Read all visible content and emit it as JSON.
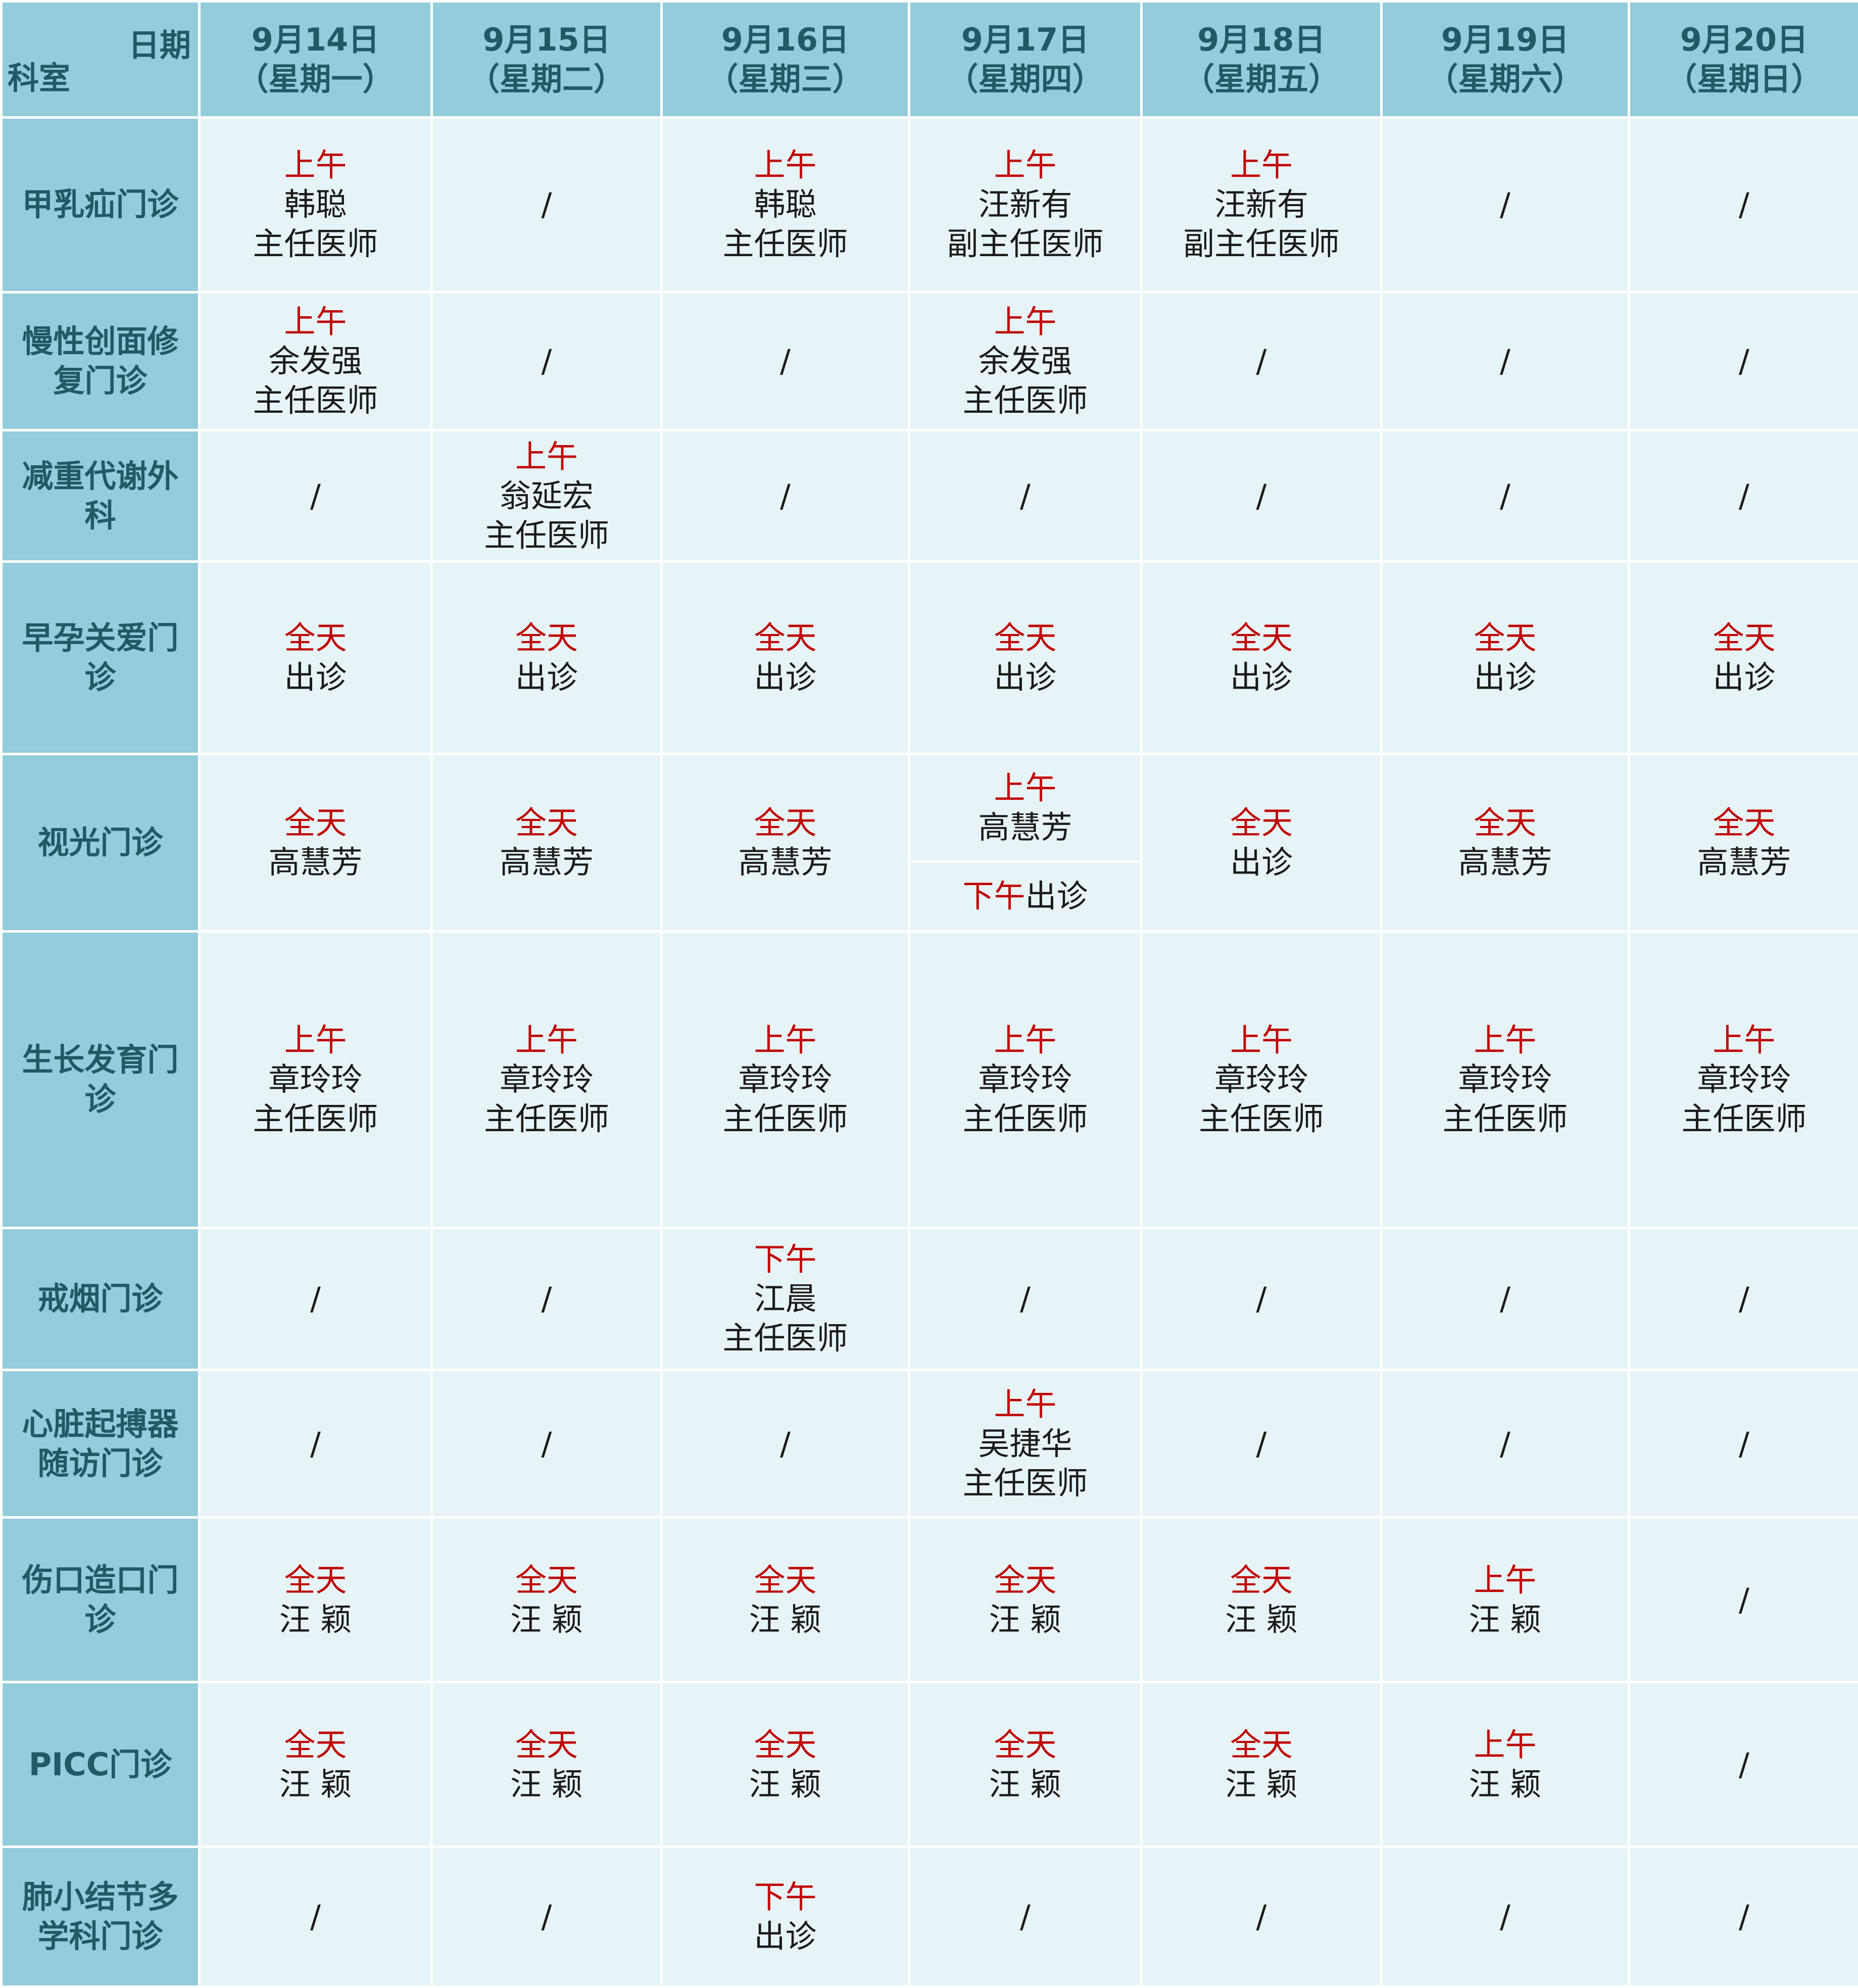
{
  "header": {
    "corner_date": "日期",
    "corner_dept": "科室",
    "days": [
      {
        "date": "9月14日",
        "weekday": "（星期一）"
      },
      {
        "date": "9月15日",
        "weekday": "（星期二）"
      },
      {
        "date": "9月16日",
        "weekday": "（星期三）"
      },
      {
        "date": "9月17日",
        "weekday": "（星期四）"
      },
      {
        "date": "9月18日",
        "weekday": "（星期五）"
      },
      {
        "date": "9月19日",
        "weekday": "（星期六）"
      },
      {
        "date": "9月20日",
        "weekday": "（星期日）"
      }
    ]
  },
  "rows": [
    {
      "dept": "甲乳疝门诊",
      "cells": [
        {
          "time": "上午",
          "doctor": "韩聪",
          "title": "主任医师"
        },
        {
          "time": "",
          "doctor": "/",
          "title": ""
        },
        {
          "time": "上午",
          "doctor": "韩聪",
          "title": "主任医师"
        },
        {
          "time": "上午",
          "doctor": "汪新有",
          "title": "副主任医师"
        },
        {
          "time": "上午",
          "doctor": "汪新有",
          "title": "副主任医师"
        },
        {
          "time": "",
          "doctor": "/",
          "title": ""
        },
        {
          "time": "",
          "doctor": "/",
          "title": ""
        }
      ]
    },
    {
      "dept": "慢性创面修复门诊",
      "cells": [
        {
          "time": "上午",
          "doctor": "余发强",
          "title": "主任医师"
        },
        {
          "time": "",
          "doctor": "/",
          "title": ""
        },
        {
          "time": "",
          "doctor": "/",
          "title": ""
        },
        {
          "time": "上午",
          "doctor": "余发强",
          "title": "主任医师"
        },
        {
          "time": "",
          "doctor": "/",
          "title": ""
        },
        {
          "time": "",
          "doctor": "/",
          "title": ""
        },
        {
          "time": "",
          "doctor": "/",
          "title": ""
        }
      ]
    },
    {
      "dept": "减重代谢外科",
      "cells": [
        {
          "time": "",
          "doctor": "/",
          "title": ""
        },
        {
          "time": "上午",
          "doctor": "翁延宏",
          "title": "主任医师"
        },
        {
          "time": "",
          "doctor": "/",
          "title": ""
        },
        {
          "time": "",
          "doctor": "/",
          "title": ""
        },
        {
          "time": "",
          "doctor": "/",
          "title": ""
        },
        {
          "time": "",
          "doctor": "/",
          "title": ""
        },
        {
          "time": "",
          "doctor": "/",
          "title": ""
        }
      ]
    },
    {
      "dept": "早孕关爱门诊",
      "cells": [
        {
          "time": "全天",
          "doctor": "出诊",
          "title": ""
        },
        {
          "time": "全天",
          "doctor": "出诊",
          "title": ""
        },
        {
          "time": "全天",
          "doctor": "出诊",
          "title": ""
        },
        {
          "time": "全天",
          "doctor": "出诊",
          "title": ""
        },
        {
          "time": "全天",
          "doctor": "出诊",
          "title": ""
        },
        {
          "time": "全天",
          "doctor": "出诊",
          "title": ""
        },
        {
          "time": "全天",
          "doctor": "出诊",
          "title": ""
        }
      ]
    },
    {
      "dept": "视光门诊",
      "cells": [
        {
          "time": "全天",
          "doctor": "高慧芳",
          "title": ""
        },
        {
          "time": "全天",
          "doctor": "高慧芳",
          "title": ""
        },
        {
          "time": "全天",
          "doctor": "高慧芳",
          "title": ""
        },
        {
          "time": "上午",
          "doctor": "高慧芳",
          "title": "",
          "pm_time": "下午",
          "pm_text": "出诊"
        },
        {
          "time": "全天",
          "doctor": "出诊",
          "title": ""
        },
        {
          "time": "全天",
          "doctor": "高慧芳",
          "title": ""
        },
        {
          "time": "全天",
          "doctor": "高慧芳",
          "title": ""
        }
      ]
    },
    {
      "dept": "生长发育门诊",
      "cells": [
        {
          "time": "上午",
          "doctor": "章玲玲",
          "title": "主任医师"
        },
        {
          "time": "上午",
          "doctor": "章玲玲",
          "title": "主任医师"
        },
        {
          "time": "上午",
          "doctor": "章玲玲",
          "title": "主任医师"
        },
        {
          "time": "上午",
          "doctor": "章玲玲",
          "title": "主任医师"
        },
        {
          "time": "上午",
          "doctor": "章玲玲",
          "title": "主任医师"
        },
        {
          "time": "上午",
          "doctor": "章玲玲",
          "title": "主任医师"
        },
        {
          "time": "上午",
          "doctor": "章玲玲",
          "title": "主任医师"
        }
      ]
    },
    {
      "dept": "戒烟门诊",
      "cells": [
        {
          "time": "",
          "doctor": "/",
          "title": ""
        },
        {
          "time": "",
          "doctor": "/",
          "title": ""
        },
        {
          "time": "下午",
          "doctor": "江晨",
          "title": "主任医师"
        },
        {
          "time": "",
          "doctor": "/",
          "title": ""
        },
        {
          "time": "",
          "doctor": "/",
          "title": ""
        },
        {
          "time": "",
          "doctor": "/",
          "title": ""
        },
        {
          "time": "",
          "doctor": "/",
          "title": ""
        }
      ]
    },
    {
      "dept": "心脏起搏器随访门诊",
      "cells": [
        {
          "time": "",
          "doctor": "/",
          "title": ""
        },
        {
          "time": "",
          "doctor": "/",
          "title": ""
        },
        {
          "time": "",
          "doctor": "/",
          "title": ""
        },
        {
          "time": "上午",
          "doctor": "吴捷华",
          "title": "主任医师"
        },
        {
          "time": "",
          "doctor": "/",
          "title": ""
        },
        {
          "time": "",
          "doctor": "/",
          "title": ""
        },
        {
          "time": "",
          "doctor": "/",
          "title": ""
        }
      ]
    },
    {
      "dept": "伤口造口门诊",
      "cells": [
        {
          "time": "全天",
          "doctor": "汪 颖",
          "title": ""
        },
        {
          "time": "全天",
          "doctor": "汪 颖",
          "title": ""
        },
        {
          "time": "全天",
          "doctor": "汪 颖",
          "title": ""
        },
        {
          "time": "全天",
          "doctor": "汪 颖",
          "title": ""
        },
        {
          "time": "全天",
          "doctor": "汪 颖",
          "title": ""
        },
        {
          "time": "上午",
          "doctor": "汪 颖",
          "title": ""
        },
        {
          "time": "",
          "doctor": "/",
          "title": ""
        }
      ]
    },
    {
      "dept": "PICC门诊",
      "cells": [
        {
          "time": "全天",
          "doctor": "汪 颖",
          "title": ""
        },
        {
          "time": "全天",
          "doctor": "汪 颖",
          "title": ""
        },
        {
          "time": "全天",
          "doctor": "汪 颖",
          "title": ""
        },
        {
          "time": "全天",
          "doctor": "汪 颖",
          "title": ""
        },
        {
          "time": "全天",
          "doctor": "汪 颖",
          "title": ""
        },
        {
          "time": "上午",
          "doctor": "汪 颖",
          "title": ""
        },
        {
          "time": "",
          "doctor": "/",
          "title": ""
        }
      ]
    },
    {
      "dept": "肺小结节多学科门诊",
      "cells": [
        {
          "time": "",
          "doctor": "/",
          "title": ""
        },
        {
          "time": "",
          "doctor": "/",
          "title": ""
        },
        {
          "time": "下午",
          "doctor": "出诊",
          "title": ""
        },
        {
          "time": "",
          "doctor": "/",
          "title": ""
        },
        {
          "time": "",
          "doctor": "/",
          "title": ""
        },
        {
          "time": "",
          "doctor": "/",
          "title": ""
        },
        {
          "time": "",
          "doctor": "/",
          "title": ""
        }
      ]
    }
  ]
}
